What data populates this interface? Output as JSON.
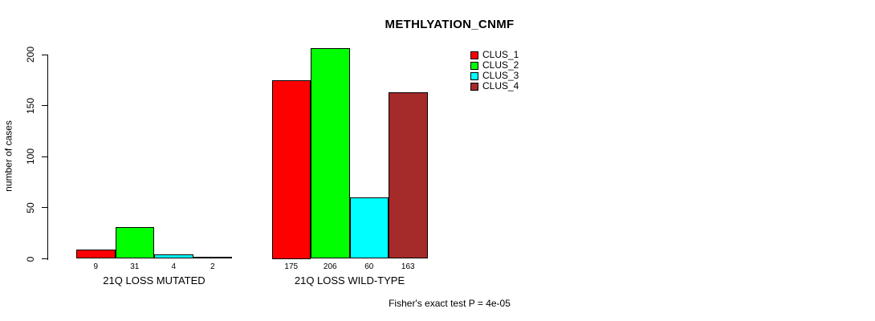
{
  "chart_data": {
    "type": "bar",
    "title": "METHLYATION_CNMF",
    "ylabel": "number of cases",
    "ylim": [
      0,
      200
    ],
    "yticks": [
      0,
      50,
      100,
      150,
      200
    ],
    "grid": false,
    "legend_position": "top-right",
    "categories": [
      "21Q LOSS MUTATED",
      "21Q LOSS WILD-TYPE"
    ],
    "groups": [
      {
        "label": "21Q LOSS MUTATED",
        "values": [
          9,
          31,
          4,
          2
        ]
      },
      {
        "label": "21Q LOSS WILD-TYPE",
        "values": [
          175,
          206,
          60,
          163
        ]
      }
    ],
    "series": [
      {
        "name": "CLUS_1",
        "color": "#FF0000"
      },
      {
        "name": "CLUS_2",
        "color": "#00FF00"
      },
      {
        "name": "CLUS_3",
        "color": "#00FFFF"
      },
      {
        "name": "CLUS_4",
        "color": "#A52A2A"
      }
    ],
    "annotation": "Fisher's exact test P = 4e-05"
  }
}
